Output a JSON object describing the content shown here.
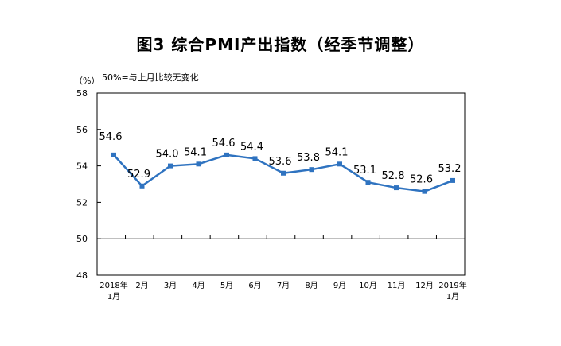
{
  "title": "图3 综合PMI产出指数（经季节调整）",
  "chart_data": {
    "type": "line",
    "ylabel": "（%）",
    "note": "50%=与上月比较无变化",
    "ylim": [
      48,
      58
    ],
    "yticks": [
      48,
      50,
      52,
      54,
      56,
      58
    ],
    "reference_line": 50,
    "categories": [
      [
        "2018年",
        "1月"
      ],
      [
        "2月"
      ],
      [
        "3月"
      ],
      [
        "4月"
      ],
      [
        "5月"
      ],
      [
        "6月"
      ],
      [
        "7月"
      ],
      [
        "8月"
      ],
      [
        "9月"
      ],
      [
        "10月"
      ],
      [
        "11月"
      ],
      [
        "12月"
      ],
      [
        "2019年",
        "1月"
      ]
    ],
    "values": [
      54.6,
      52.9,
      54.0,
      54.1,
      54.6,
      54.4,
      53.6,
      53.8,
      54.1,
      53.1,
      52.8,
      52.6,
      53.2
    ],
    "data_labels": [
      "54.6",
      "52.9",
      "54.0",
      "54.1",
      "54.6",
      "54.4",
      "53.6",
      "53.8",
      "54.1",
      "53.1",
      "52.8",
      "52.6",
      "53.2"
    ],
    "line_color": "#2f73c0",
    "grid": false
  }
}
